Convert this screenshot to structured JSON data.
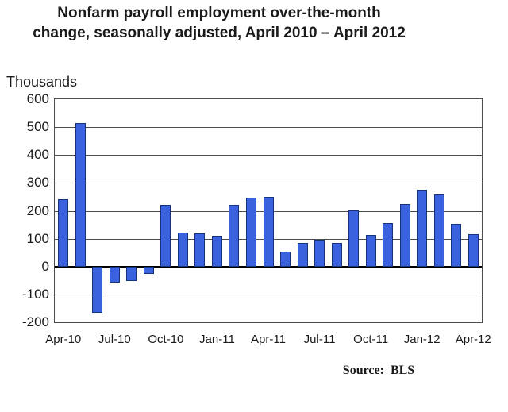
{
  "chart_data": {
    "type": "bar",
    "title": "Nonfarm payroll employment over-the-month change, seasonally adjusted, April 2010 – April 2012",
    "title_lines": [
      "Nonfarm payroll employment over-the-month",
      "change, seasonally adjusted, April 2010 – April 2012"
    ],
    "unit_label": "Thousands",
    "ylabel": "Thousands",
    "xlabel": "",
    "source_label": "Source:  BLS",
    "categories": [
      "Apr-10",
      "May-10",
      "Jun-10",
      "Jul-10",
      "Aug-10",
      "Sep-10",
      "Oct-10",
      "Nov-10",
      "Dec-10",
      "Jan-11",
      "Feb-11",
      "Mar-11",
      "Apr-11",
      "May-11",
      "Jun-11",
      "Jul-11",
      "Aug-11",
      "Sep-11",
      "Oct-11",
      "Nov-11",
      "Dec-11",
      "Jan-12",
      "Feb-12",
      "Mar-12",
      "Apr-12"
    ],
    "values": [
      240,
      516,
      -167,
      -58,
      -51,
      -27,
      220,
      121,
      120,
      110,
      220,
      246,
      251,
      54,
      84,
      96,
      85,
      202,
      112,
      157,
      223,
      275,
      259,
      154,
      115
    ],
    "x_tick_labels": [
      "Apr-10",
      "Jul-10",
      "Oct-10",
      "Jan-11",
      "Apr-11",
      "Jul-11",
      "Oct-11",
      "Jan-12",
      "Apr-12"
    ],
    "x_tick_every": 3,
    "y_ticks": [
      600,
      500,
      400,
      300,
      200,
      100,
      0,
      -100,
      -200
    ],
    "ylim": [
      -200,
      600
    ],
    "grid": true,
    "legend": false,
    "bar_color": "#3A62DE",
    "bar_border_color": "#16337A"
  }
}
